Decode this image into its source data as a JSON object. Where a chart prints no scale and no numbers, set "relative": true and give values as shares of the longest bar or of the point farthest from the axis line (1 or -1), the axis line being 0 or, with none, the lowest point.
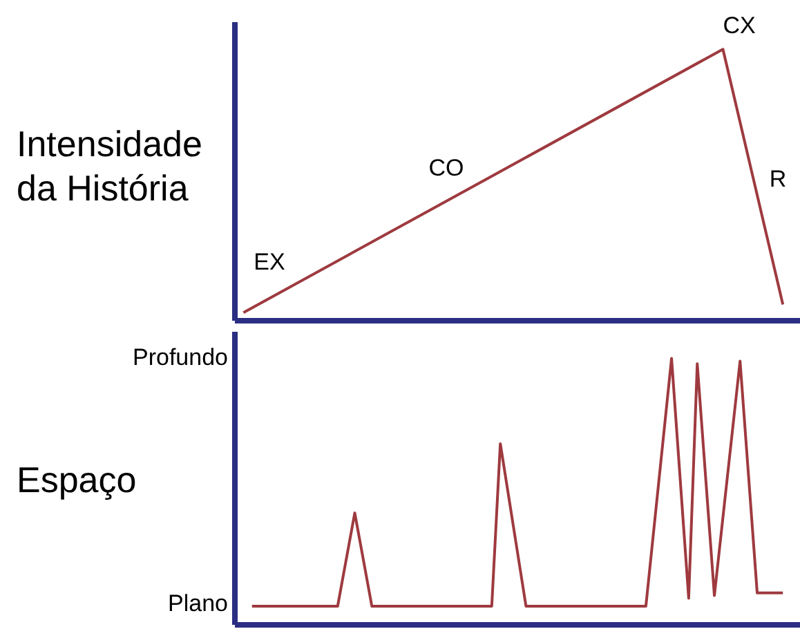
{
  "chart_data": [
    {
      "type": "line",
      "ylabel": "Intensidade da História",
      "relative": true,
      "grid": false,
      "legend": false,
      "marker": "none",
      "line_style": "solid",
      "categories": [
        null,
        null,
        null,
        null,
        null,
        null,
        null,
        null,
        null,
        null,
        null,
        null,
        null,
        null,
        null,
        null,
        null,
        null,
        null,
        null,
        null,
        null,
        null,
        null,
        null,
        null,
        null,
        null,
        null,
        null,
        null,
        null,
        null,
        null,
        null,
        null,
        null,
        null,
        null,
        null,
        null,
        null,
        null,
        null,
        null,
        null,
        null,
        null,
        null,
        null,
        null,
        null,
        null,
        null,
        null,
        null,
        null,
        null,
        null,
        null,
        null,
        null,
        null,
        null,
        null,
        null,
        null
      ],
      "series": [
        {
          "color": "#9e3a3f",
          "values": [
            null,
            0.03,
            null,
            null,
            null,
            null,
            null,
            null,
            null,
            null,
            null,
            null,
            null,
            null,
            null,
            null,
            null,
            null,
            null,
            null,
            null,
            null,
            null,
            null,
            null,
            null,
            null,
            null,
            null,
            null,
            null,
            null,
            null,
            null,
            null,
            null,
            null,
            null,
            null,
            null,
            null,
            null,
            null,
            null,
            null,
            null,
            null,
            null,
            null,
            null,
            null,
            null,
            null,
            null,
            null,
            null,
            null,
            1,
            null,
            null,
            null,
            null,
            null,
            null,
            0.06,
            null,
            null
          ]
        }
      ],
      "annotations": [
        "EX",
        "CO",
        "CX",
        "R"
      ]
    },
    {
      "type": "line",
      "ylabel": "Espaço",
      "relative": true,
      "annotations": [
        "Profundo",
        "Plano"
      ],
      "grid": false,
      "legend": false,
      "marker": "none",
      "line_style": "solid",
      "categories": [
        null,
        null,
        null,
        null,
        null,
        null,
        null,
        null,
        null,
        null,
        null,
        null,
        null,
        null,
        null,
        null,
        null,
        null,
        null,
        null,
        null,
        null,
        null,
        null,
        null,
        null,
        null,
        null,
        null,
        null,
        null,
        null,
        null,
        null,
        null,
        null,
        null,
        null,
        null,
        null,
        null,
        null,
        null,
        null,
        null,
        null,
        null,
        null,
        null,
        null,
        null,
        null,
        null,
        null,
        null,
        null,
        null,
        null,
        null,
        null,
        null,
        null,
        null,
        null,
        null,
        null,
        null
      ],
      "series": [
        {
          "color": "#9e3a3f",
          "values": [
            null,
            null,
            0.07,
            null,
            null,
            null,
            null,
            null,
            null,
            null,
            null,
            null,
            0.07,
            null,
            0.42,
            null,
            0.07,
            null,
            null,
            null,
            null,
            null,
            null,
            null,
            null,
            null,
            null,
            null,
            null,
            null,
            0.07,
            0.68,
            null,
            null,
            0.07,
            null,
            null,
            null,
            null,
            null,
            null,
            null,
            null,
            null,
            null,
            null,
            null,
            null,
            0.07,
            null,
            null,
            1,
            null,
            0.1,
            0.98,
            null,
            0.11,
            null,
            null,
            0.99,
            null,
            0.12,
            null,
            null,
            0.12,
            null,
            null
          ]
        }
      ]
    }
  ]
}
